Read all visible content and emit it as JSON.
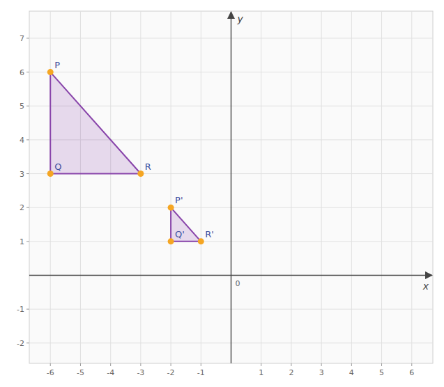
{
  "chart_data": {
    "type": "polygon",
    "xlabel": "x",
    "ylabel": "y",
    "xlim": [
      -6.7,
      6.7
    ],
    "ylim": [
      -2.6,
      7.8
    ],
    "xticks": [
      -6,
      -5,
      -4,
      -3,
      -2,
      -1,
      1,
      2,
      3,
      4,
      5,
      6
    ],
    "yticks": [
      -2,
      -1,
      1,
      2,
      3,
      4,
      5,
      6,
      7
    ],
    "grid": true,
    "series": [
      {
        "type": "polygon",
        "color": "#8844aa",
        "x": [
          -6,
          -6,
          -3
        ],
        "y": [
          6,
          3,
          3
        ]
      },
      {
        "type": "polygon",
        "color": "#8844aa",
        "x": [
          -2,
          -2,
          -1
        ],
        "y": [
          2,
          1,
          1
        ]
      },
      {
        "type": "scatter",
        "color": "#f5a623",
        "x": [
          -6,
          -6,
          -3,
          -2,
          -2,
          -1
        ],
        "y": [
          6,
          3,
          3,
          2,
          1,
          1
        ]
      }
    ],
    "annotations": [
      {
        "text": "P",
        "x": -6,
        "y": 6
      },
      {
        "text": "Q",
        "x": -6,
        "y": 3
      },
      {
        "text": "R",
        "x": -3,
        "y": 3
      },
      {
        "text": "P'",
        "x": -2,
        "y": 2
      },
      {
        "text": "Q'",
        "x": -2,
        "y": 1
      },
      {
        "text": "R'",
        "x": -1,
        "y": 1
      },
      {
        "text": "0",
        "x": 0,
        "y": 0
      }
    ]
  }
}
